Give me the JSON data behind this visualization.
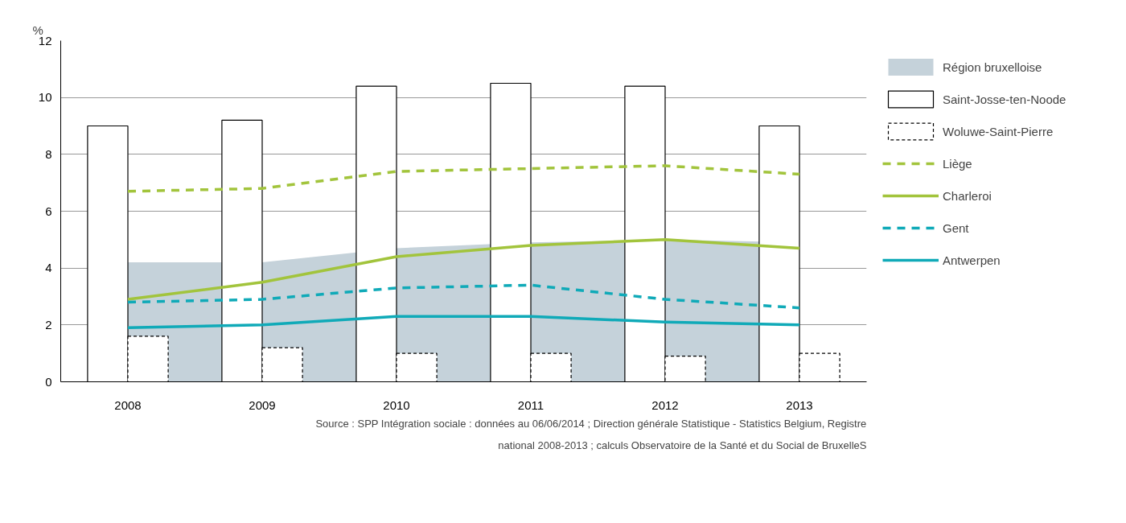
{
  "chart_data": {
    "type": "bar",
    "ylabel": "%",
    "categories": [
      "2008",
      "2009",
      "2010",
      "2011",
      "2012",
      "2013"
    ],
    "ylim": [
      0,
      12
    ],
    "yticks": [
      0,
      2,
      4,
      6,
      8,
      10,
      12
    ],
    "grid": "y",
    "legend": "right",
    "series": [
      {
        "name": "Région bruxelloise",
        "type": "area",
        "color": "#c5d2da",
        "values": [
          4.2,
          4.2,
          4.7,
          4.9,
          5.0,
          4.9
        ]
      },
      {
        "name": "Saint-Josse-ten-Noode",
        "color": "#ffffff",
        "line_style": "solid",
        "values": [
          9.0,
          9.2,
          10.4,
          10.5,
          10.4,
          9.0
        ]
      },
      {
        "name": "Woluwe-Saint-Pierre",
        "color": "#ffffff",
        "line_style": "dashed",
        "values": [
          1.6,
          1.2,
          1.0,
          1.0,
          0.9,
          1.0
        ]
      },
      {
        "name": "Liège",
        "type": "line",
        "color": "#a2c43c",
        "line_style": "dashed",
        "values": [
          6.7,
          6.8,
          7.4,
          7.5,
          7.6,
          7.3
        ]
      },
      {
        "name": "Charleroi",
        "type": "line",
        "color": "#a2c43c",
        "line_style": "solid",
        "values": [
          2.9,
          3.5,
          4.4,
          4.8,
          5.0,
          4.7
        ]
      },
      {
        "name": "Gent",
        "type": "line",
        "color": "#10aab8",
        "line_style": "dashed",
        "values": [
          2.8,
          2.9,
          3.3,
          3.4,
          2.9,
          2.6
        ]
      },
      {
        "name": "Antwerpen",
        "type": "line",
        "color": "#10aab8",
        "line_style": "solid",
        "values": [
          1.9,
          2.0,
          2.3,
          2.3,
          2.1,
          2.0
        ]
      }
    ],
    "annotations": [
      "Source : SPP Intégration sociale : données au 06/06/2014 ; Direction générale Statistique - Statistics Belgium, Registre national 2008-2013 ; calculs Observatoire de la Santé et du Social de BruxelleS"
    ]
  }
}
